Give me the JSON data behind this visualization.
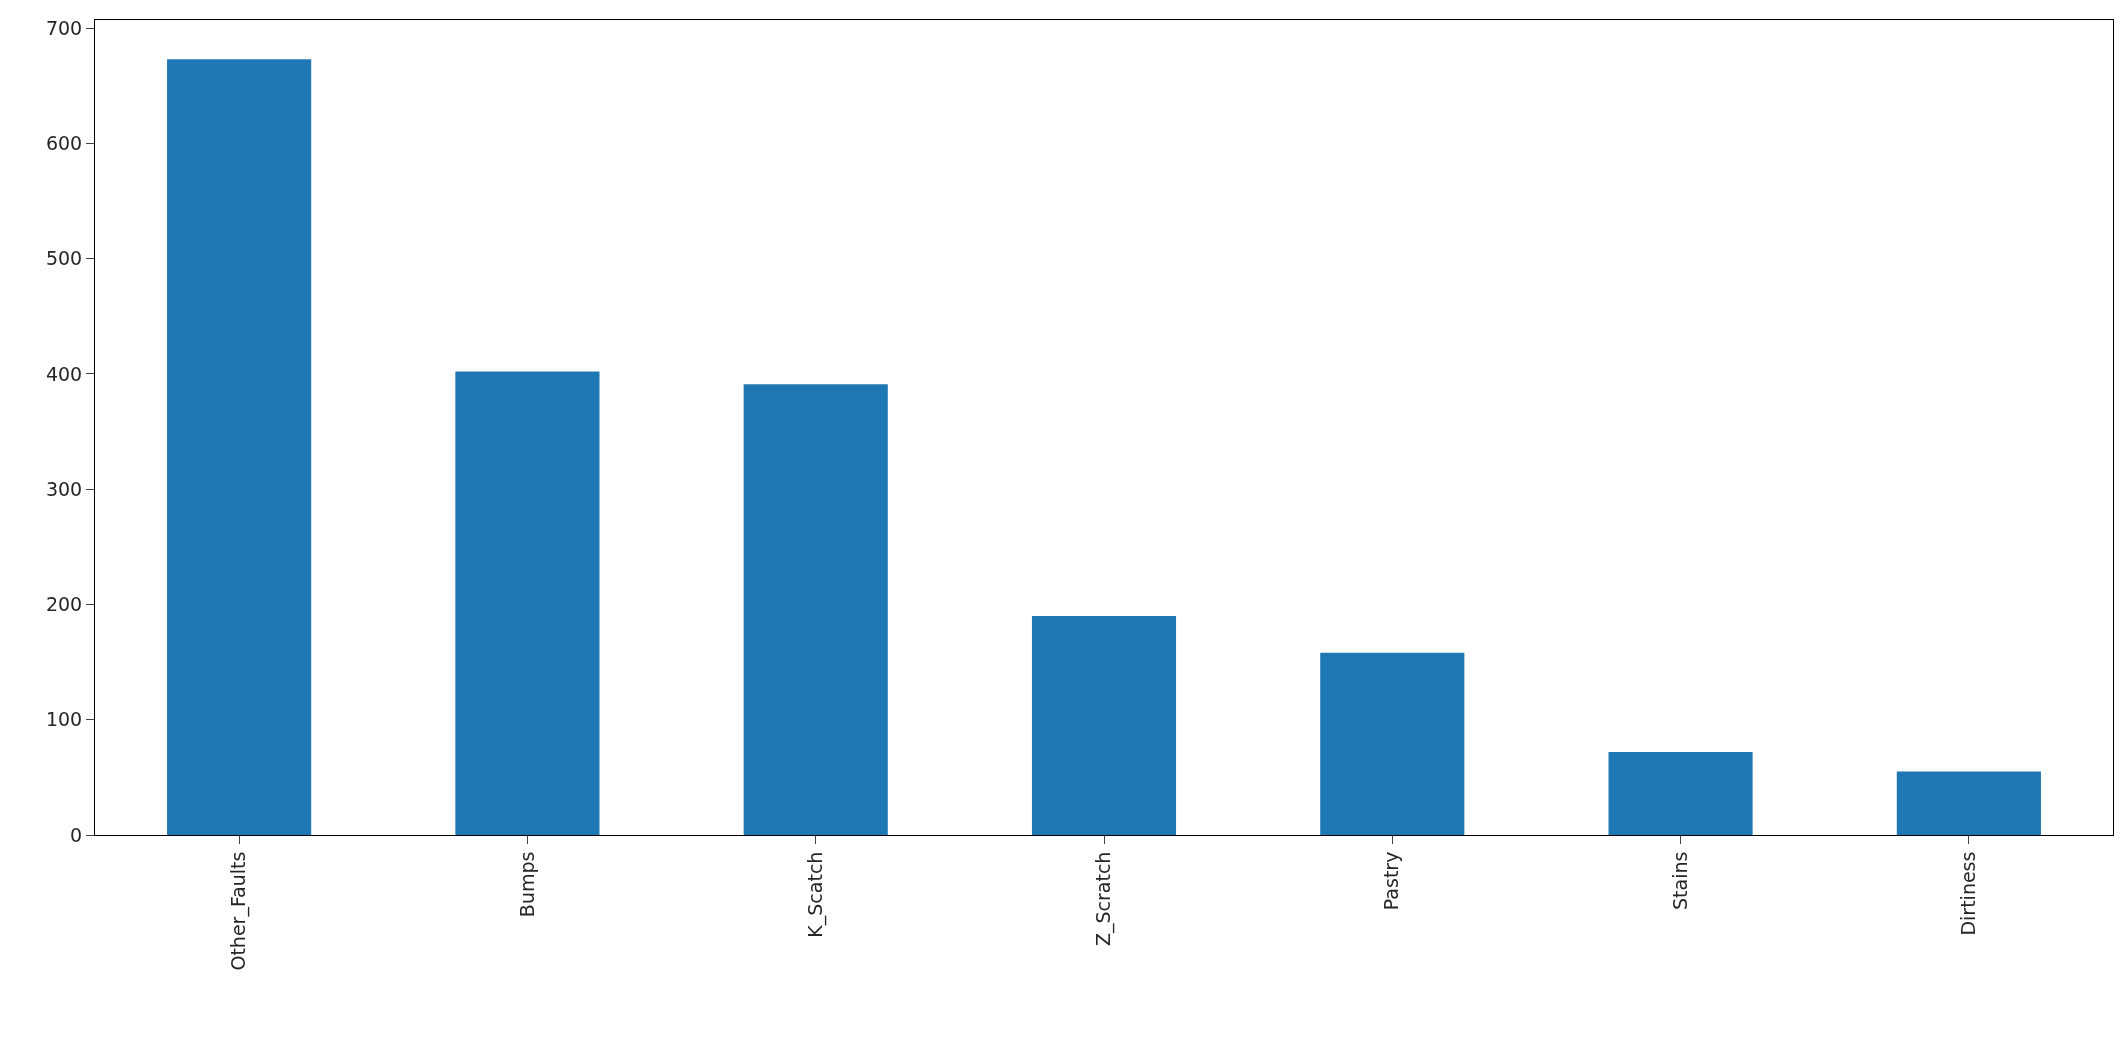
{
  "chart_data": {
    "type": "bar",
    "categories": [
      "Other_Faults",
      "Bumps",
      "K_Scatch",
      "Z_Scratch",
      "Pastry",
      "Stains",
      "Dirtiness"
    ],
    "values": [
      673,
      402,
      391,
      190,
      158,
      72,
      55
    ],
    "color": "#1f77b4",
    "ylim": [
      0,
      707
    ],
    "yticks": [
      0,
      100,
      200,
      300,
      400,
      500,
      600,
      700
    ]
  }
}
